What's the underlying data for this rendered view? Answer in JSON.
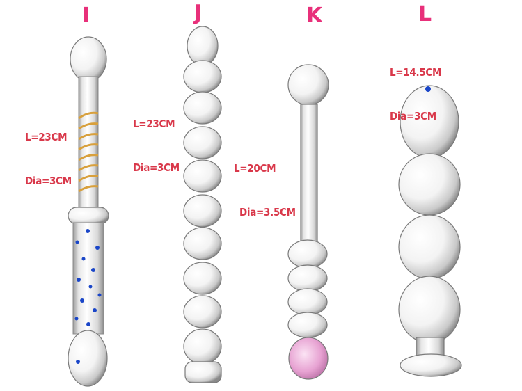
{
  "colors": {
    "letter": "#e8307a",
    "spec_text": "#d9384a",
    "glass_edge": "#6f6f6f",
    "gold_spiral": "#d8a03c",
    "blue_dots": "#1a46c8",
    "pink_tip": "#e7a2d2"
  },
  "items": [
    {
      "letter": "I",
      "length": "L=23CM",
      "diameter": "Dia=3CM"
    },
    {
      "letter": "J",
      "length": "L=23CM",
      "diameter": "Dia=3CM"
    },
    {
      "letter": "K",
      "length": "L=20CM",
      "diameter": "Dia=3.5CM"
    },
    {
      "letter": "L",
      "length": "L=14.5CM",
      "diameter": "Dia=3CM"
    }
  ]
}
